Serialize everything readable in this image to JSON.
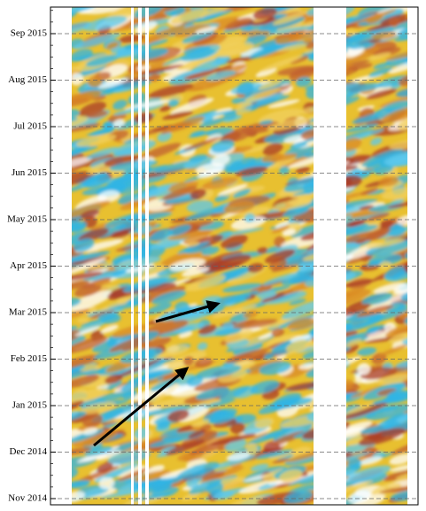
{
  "chart_data": {
    "type": "heatmap",
    "y_labels": [
      "Nov 2014",
      "Dec 2014",
      "Jan 2015",
      "Feb 2015",
      "Mar 2015",
      "Apr 2015",
      "May 2015",
      "Jun 2015",
      "Jul 2015",
      "Aug 2015",
      "Sep 2015"
    ],
    "grid": true
  }
}
